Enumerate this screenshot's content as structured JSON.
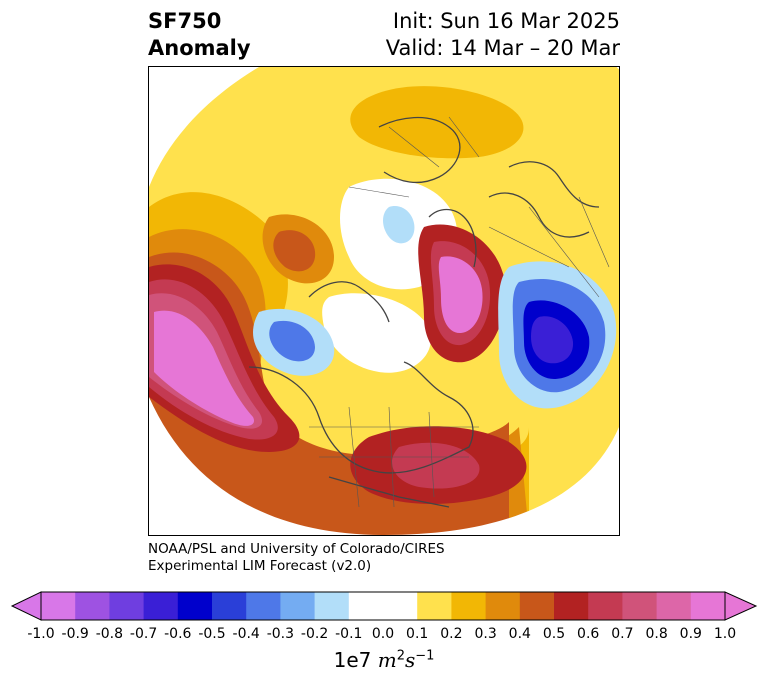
{
  "header": {
    "variable": "SF750",
    "subtitle": "Anomaly",
    "init": "Init: Sun 16 Mar 2025",
    "valid": "Valid: 14 Mar – 20 Mar"
  },
  "credit": {
    "line1": "NOAA/PSL and University of Colorado/CIRES",
    "line2": "Experimental LIM Forecast (v2.0)"
  },
  "colorbar": {
    "levels": [
      "-1.0",
      "-0.9",
      "-0.8",
      "-0.7",
      "-0.6",
      "-0.5",
      "-0.4",
      "-0.3",
      "-0.2",
      "-0.1",
      "0.0",
      "0.1",
      "0.2",
      "0.3",
      "0.4",
      "0.5",
      "0.6",
      "0.7",
      "0.8",
      "0.9",
      "1.0"
    ],
    "colors": [
      "#d877e8",
      "#9e52e2",
      "#6f3ee0",
      "#3a1fd6",
      "#0000cc",
      "#2a3fd8",
      "#4e78e8",
      "#74acf2",
      "#b2def9",
      "#ffffff",
      "#ffffff",
      "#ffe14d",
      "#f2b705",
      "#e08a0c",
      "#c8571a",
      "#b22222",
      "#c43a52",
      "#d0537a",
      "#dd66a8",
      "#e676d6"
    ],
    "units_prefix": "1e7",
    "units_main": "m",
    "units_exp1": "2",
    "units_mid": "s",
    "units_exp2": "−1"
  },
  "map": {
    "projection": "north-polar-stereographic",
    "region": "Northern Hemisphere"
  }
}
